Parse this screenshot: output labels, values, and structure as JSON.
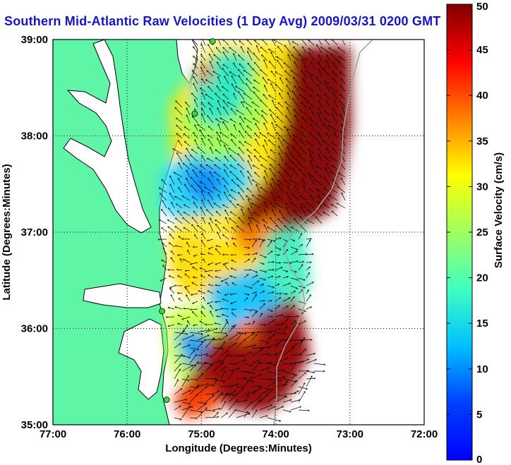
{
  "title": "Southern Mid-Atlantic Raw Velocities (1 Day Avg) 2009/03/31 0200 GMT",
  "map": {
    "xlabel": "Longitude (Degrees:Minutes)",
    "ylabel": "Latitude (Degrees:Minutes)",
    "x_ticks": [
      "77:00",
      "76:00",
      "75:00",
      "74:00",
      "73:00",
      "72:00"
    ],
    "y_ticks": [
      "39:00",
      "38:00",
      "37:00",
      "36:00",
      "35:00"
    ],
    "lon_range": [
      -77,
      -72
    ],
    "lat_range": [
      35,
      39
    ],
    "grid": "dotted",
    "colors": {
      "land": "#5ff5a6",
      "water": "#ffffff",
      "arrows": "#000000",
      "coast": "#000000",
      "isobath": "#a0a0a0",
      "station": "#33dd33"
    }
  },
  "colorbar": {
    "label": "Surface Velocity (cm/s)",
    "ticks": [
      "0",
      "5",
      "10",
      "15",
      "20",
      "25",
      "30",
      "35",
      "40",
      "45",
      "50"
    ],
    "min": 0,
    "max": 50,
    "colormap": "jet"
  },
  "stations": [
    {
      "lon": -74.85,
      "lat": 38.98
    },
    {
      "lon": -75.09,
      "lat": 38.23
    },
    {
      "lon": -75.53,
      "lat": 36.18
    },
    {
      "lon": -75.47,
      "lat": 35.26
    }
  ]
}
